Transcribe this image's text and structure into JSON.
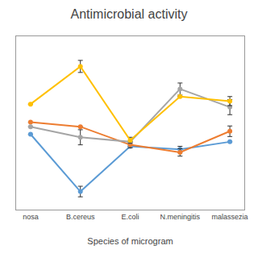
{
  "chart_data": {
    "type": "line",
    "title": "Antimicrobial activity",
    "xlabel": "Species of microgram",
    "categories": [
      "nosa",
      "B.cereus",
      "E.coli",
      "N.meningitis",
      "malassezia"
    ],
    "series": [
      {
        "color": "#5B9BD5",
        "values": [
          5.0,
          1.2,
          4.2,
          4.0,
          4.5
        ],
        "yerr": [
          0.0,
          0.35,
          0.0,
          0.2,
          0.0
        ]
      },
      {
        "color": "#ED7D31",
        "values": [
          5.8,
          5.5,
          4.3,
          3.8,
          5.2
        ],
        "yerr": [
          0.0,
          0.0,
          0.2,
          0.25,
          0.35
        ]
      },
      {
        "color": "#A5A5A5",
        "values": [
          5.5,
          4.8,
          4.5,
          8.0,
          6.8
        ],
        "yerr": [
          0.0,
          0.5,
          0.0,
          0.4,
          0.5
        ]
      },
      {
        "color": "#FFC000",
        "values": [
          7.0,
          9.5,
          4.6,
          7.5,
          7.2
        ],
        "yerr": [
          0.0,
          0.4,
          0.2,
          0.0,
          0.3
        ]
      }
    ],
    "ylim": [
      0.0,
      11.5
    ],
    "marker": "circle",
    "grid": false,
    "tick_labels": "x"
  }
}
